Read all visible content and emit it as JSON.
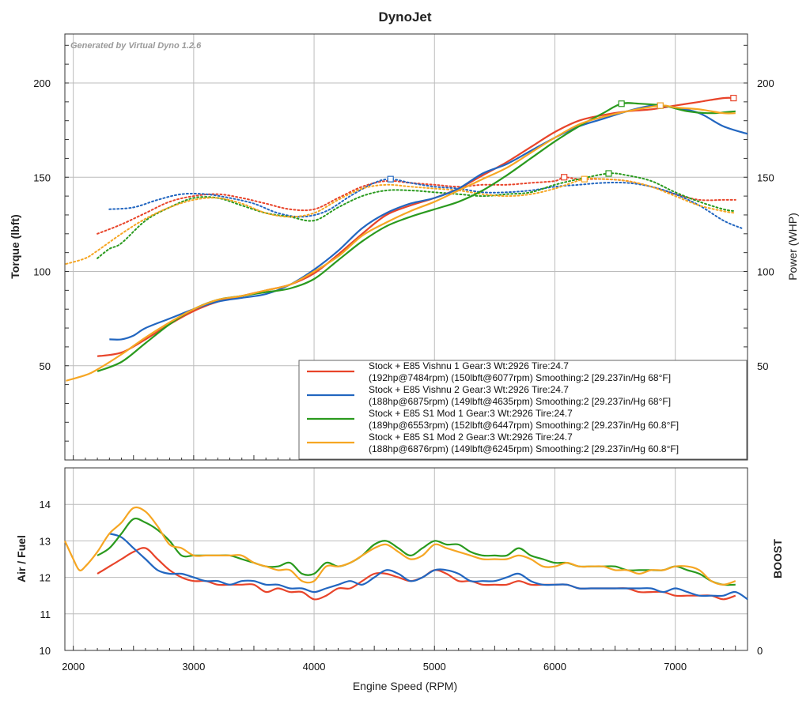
{
  "chart_data": [
    {
      "type": "line",
      "title": "DynoJet",
      "watermark": "Generated by Virtual Dyno 1.2.6",
      "xlabel": "Engine Speed (RPM)",
      "ylabel_left": "Torque (lbft)",
      "ylabel_right": "Power (WHP)",
      "xlim": [
        1930,
        7600
      ],
      "ylim": [
        0,
        226
      ],
      "x_ticks": [
        2000,
        3000,
        4000,
        5000,
        6000,
        7000
      ],
      "y_ticks": [
        50,
        100,
        150,
        200
      ],
      "grid": true,
      "legend_placement": "bottom-right",
      "colors": {
        "red": "#e8442a",
        "blue": "#2266c0",
        "green": "#2a9a1e",
        "orange": "#f6a623"
      },
      "legend": [
        {
          "line1": "Stock + E85 Vishnu 1 Gear:3 Wt:2926 Tire:24.7",
          "line2": "(192hp@7484rpm) (150lbft@6077rpm) Smoothing:2 [29.237in/Hg 68°F]",
          "color": "#e8442a"
        },
        {
          "line1": "Stock + E85 Vishnu 2 Gear:3 Wt:2926 Tire:24.7",
          "line2": "(188hp@6875rpm) (149lbft@4635rpm) Smoothing:2 [29.237in/Hg 68°F]",
          "color": "#2266c0"
        },
        {
          "line1": "Stock + E85 S1 Mod 1 Gear:3 Wt:2926 Tire:24.7",
          "line2": "(189hp@6553rpm) (152lbft@6447rpm) Smoothing:2 [29.237in/Hg 60.8°F]",
          "color": "#2a9a1e"
        },
        {
          "line1": "Stock + E85 S1 Mod 2 Gear:3 Wt:2926 Tire:24.7",
          "line2": "(188hp@6876rpm) (149lbft@6245rpm) Smoothing:2 [29.237in/Hg 60.8°F]",
          "color": "#f6a623"
        }
      ],
      "power_series": [
        {
          "color": "#e8442a",
          "peak": [
            7484,
            192
          ],
          "x": [
            2200,
            2400,
            2600,
            2800,
            3000,
            3200,
            3400,
            3600,
            3800,
            4000,
            4200,
            4400,
            4600,
            4800,
            5000,
            5200,
            5400,
            5600,
            5800,
            6000,
            6200,
            6400,
            6600,
            6800,
            7000,
            7200,
            7400,
            7500
          ],
          "y": [
            55,
            57,
            64,
            72,
            79,
            84,
            87,
            90,
            93,
            99,
            109,
            120,
            130,
            135,
            139,
            144,
            151,
            158,
            166,
            174,
            180,
            183,
            185,
            186,
            188,
            190,
            192,
            192
          ]
        },
        {
          "color": "#2266c0",
          "peak": [
            6875,
            188
          ],
          "x": [
            2300,
            2400,
            2500,
            2600,
            2800,
            3000,
            3200,
            3400,
            3600,
            3800,
            4000,
            4200,
            4400,
            4600,
            4800,
            5000,
            5200,
            5400,
            5600,
            5800,
            6000,
            6200,
            6400,
            6600,
            6800,
            6875,
            7000,
            7200,
            7400,
            7600
          ],
          "y": [
            64,
            64,
            66,
            70,
            75,
            80,
            84,
            86,
            88,
            93,
            101,
            111,
            123,
            131,
            136,
            139,
            144,
            152,
            157,
            164,
            171,
            177,
            181,
            185,
            188,
            188,
            187,
            184,
            177,
            173
          ]
        },
        {
          "color": "#2a9a1e",
          "peak": [
            6553,
            189
          ],
          "x": [
            2200,
            2400,
            2600,
            2800,
            3000,
            3200,
            3400,
            3600,
            3800,
            4000,
            4200,
            4400,
            4600,
            4800,
            5000,
            5200,
            5400,
            5600,
            5800,
            6000,
            6200,
            6400,
            6553,
            6700,
            6900,
            7100,
            7300,
            7500
          ],
          "y": [
            47,
            52,
            62,
            72,
            80,
            85,
            87,
            89,
            91,
            96,
            106,
            116,
            124,
            129,
            133,
            137,
            143,
            151,
            160,
            169,
            177,
            184,
            189,
            189,
            188,
            185,
            184,
            185
          ]
        },
        {
          "color": "#f6a623",
          "peak": [
            6876,
            188
          ],
          "x": [
            1940,
            2100,
            2200,
            2400,
            2600,
            2800,
            3000,
            3200,
            3400,
            3600,
            3800,
            4000,
            4200,
            4400,
            4600,
            4800,
            5000,
            5200,
            5400,
            5600,
            5800,
            6000,
            6200,
            6400,
            6600,
            6876,
            7000,
            7200,
            7400,
            7500
          ],
          "y": [
            42,
            45,
            48,
            56,
            65,
            73,
            80,
            85,
            87,
            90,
            93,
            100,
            108,
            119,
            126,
            132,
            137,
            143,
            149,
            155,
            163,
            171,
            178,
            182,
            185,
            188,
            187,
            186,
            184,
            184
          ]
        }
      ],
      "torque_series": [
        {
          "color": "#e8442a",
          "peak": [
            6077,
            150
          ],
          "x": [
            2200,
            2400,
            2600,
            2800,
            3000,
            3200,
            3400,
            3600,
            3800,
            4000,
            4200,
            4400,
            4600,
            4800,
            5000,
            5200,
            5400,
            5600,
            5800,
            6000,
            6077,
            6200,
            6400,
            6600,
            6800,
            7000,
            7200,
            7400,
            7500
          ],
          "y": [
            120,
            125,
            131,
            137,
            140,
            141,
            139,
            136,
            133,
            133,
            139,
            145,
            148,
            147,
            146,
            145,
            146,
            146,
            147,
            148,
            150,
            149,
            149,
            148,
            145,
            141,
            138,
            138,
            138
          ]
        },
        {
          "color": "#2266c0",
          "peak": [
            4635,
            149
          ],
          "x": [
            2300,
            2500,
            2700,
            2900,
            3100,
            3300,
            3500,
            3700,
            3900,
            4100,
            4300,
            4500,
            4635,
            4800,
            5000,
            5200,
            5400,
            5600,
            5800,
            6000,
            6200,
            6400,
            6600,
            6800,
            7000,
            7200,
            7400,
            7550
          ],
          "y": [
            133,
            134,
            138,
            141,
            141,
            139,
            136,
            131,
            129,
            132,
            140,
            147,
            149,
            147,
            145,
            144,
            142,
            142,
            143,
            145,
            146,
            147,
            147,
            145,
            141,
            135,
            127,
            123
          ]
        },
        {
          "color": "#2a9a1e",
          "peak": [
            6447,
            152
          ],
          "x": [
            2200,
            2300,
            2400,
            2600,
            2800,
            3000,
            3200,
            3400,
            3600,
            3800,
            4000,
            4200,
            4400,
            4600,
            4800,
            5000,
            5200,
            5400,
            5600,
            5800,
            6000,
            6200,
            6447,
            6600,
            6800,
            7000,
            7200,
            7400,
            7500
          ],
          "y": [
            107,
            112,
            115,
            127,
            134,
            139,
            139,
            135,
            131,
            129,
            127,
            134,
            140,
            143,
            143,
            142,
            141,
            140,
            141,
            142,
            146,
            149,
            152,
            151,
            148,
            142,
            137,
            133,
            132
          ]
        },
        {
          "color": "#f6a623",
          "peak": [
            6245,
            149
          ],
          "x": [
            1940,
            2100,
            2200,
            2400,
            2600,
            2800,
            3000,
            3200,
            3400,
            3600,
            3800,
            4000,
            4200,
            4400,
            4600,
            4800,
            5000,
            5200,
            5400,
            5600,
            5800,
            6000,
            6245,
            6400,
            6600,
            6800,
            7000,
            7200,
            7400,
            7500
          ],
          "y": [
            104,
            107,
            111,
            120,
            128,
            134,
            138,
            139,
            136,
            131,
            129,
            131,
            138,
            144,
            146,
            145,
            144,
            143,
            141,
            140,
            141,
            144,
            149,
            149,
            148,
            145,
            140,
            135,
            132,
            131
          ]
        }
      ]
    },
    {
      "type": "line",
      "ylabel_left": "Air / Fuel",
      "ylabel_right": "BOOST",
      "xlim": [
        1930,
        7600
      ],
      "ylim": [
        10,
        15
      ],
      "y_ticks": [
        10,
        11,
        12,
        13,
        14
      ],
      "right_tick": "0",
      "grid": true,
      "series": [
        {
          "color": "#e8442a",
          "x": [
            2200,
            2300,
            2400,
            2500,
            2600,
            2700,
            2800,
            2900,
            3000,
            3100,
            3200,
            3300,
            3400,
            3500,
            3600,
            3700,
            3800,
            3900,
            4000,
            4100,
            4200,
            4300,
            4400,
            4500,
            4600,
            4700,
            4800,
            4900,
            5000,
            5100,
            5200,
            5300,
            5400,
            5500,
            5600,
            5700,
            5800,
            5900,
            6000,
            6100,
            6200,
            6300,
            6400,
            6500,
            6600,
            6700,
            6800,
            6900,
            7000,
            7100,
            7200,
            7300,
            7400,
            7500
          ],
          "y": [
            12.1,
            12.3,
            12.5,
            12.7,
            12.8,
            12.5,
            12.2,
            12.0,
            11.9,
            11.9,
            11.8,
            11.8,
            11.8,
            11.8,
            11.6,
            11.7,
            11.6,
            11.6,
            11.4,
            11.5,
            11.7,
            11.7,
            11.9,
            12.1,
            12.1,
            12.0,
            11.9,
            12.0,
            12.2,
            12.1,
            11.9,
            11.9,
            11.8,
            11.8,
            11.8,
            11.9,
            11.8,
            11.8,
            11.8,
            11.8,
            11.7,
            11.7,
            11.7,
            11.7,
            11.7,
            11.6,
            11.6,
            11.6,
            11.5,
            11.5,
            11.5,
            11.5,
            11.4,
            11.5
          ]
        },
        {
          "color": "#2266c0",
          "x": [
            2300,
            2400,
            2500,
            2600,
            2700,
            2800,
            2900,
            3000,
            3100,
            3200,
            3300,
            3400,
            3500,
            3600,
            3700,
            3800,
            3900,
            4000,
            4100,
            4200,
            4300,
            4400,
            4500,
            4600,
            4700,
            4800,
            4900,
            5000,
            5100,
            5200,
            5300,
            5400,
            5500,
            5600,
            5700,
            5800,
            5900,
            6000,
            6100,
            6200,
            6300,
            6400,
            6500,
            6600,
            6700,
            6800,
            6900,
            7000,
            7100,
            7200,
            7300,
            7400,
            7500,
            7600
          ],
          "y": [
            13.2,
            13.1,
            12.8,
            12.5,
            12.2,
            12.1,
            12.1,
            12.0,
            11.9,
            11.9,
            11.8,
            11.9,
            11.9,
            11.8,
            11.8,
            11.7,
            11.7,
            11.6,
            11.7,
            11.8,
            11.9,
            11.8,
            12.0,
            12.2,
            12.1,
            11.9,
            12.0,
            12.2,
            12.2,
            12.1,
            11.9,
            11.9,
            11.9,
            12.0,
            12.1,
            11.9,
            11.8,
            11.8,
            11.8,
            11.7,
            11.7,
            11.7,
            11.7,
            11.7,
            11.7,
            11.7,
            11.6,
            11.7,
            11.6,
            11.5,
            11.5,
            11.5,
            11.6,
            11.4
          ]
        },
        {
          "color": "#2a9a1e",
          "x": [
            2200,
            2300,
            2400,
            2500,
            2600,
            2700,
            2800,
            2900,
            3000,
            3100,
            3200,
            3300,
            3400,
            3500,
            3600,
            3700,
            3800,
            3900,
            4000,
            4100,
            4200,
            4300,
            4400,
            4500,
            4600,
            4700,
            4800,
            4900,
            5000,
            5100,
            5200,
            5300,
            5400,
            5500,
            5600,
            5700,
            5800,
            5900,
            6000,
            6100,
            6200,
            6300,
            6400,
            6500,
            6600,
            6700,
            6800,
            6900,
            7000,
            7100,
            7200,
            7300,
            7400,
            7500
          ],
          "y": [
            12.6,
            12.8,
            13.2,
            13.6,
            13.5,
            13.3,
            13.0,
            12.6,
            12.6,
            12.6,
            12.6,
            12.6,
            12.5,
            12.4,
            12.3,
            12.3,
            12.4,
            12.1,
            12.1,
            12.4,
            12.3,
            12.4,
            12.6,
            12.9,
            13.0,
            12.8,
            12.6,
            12.8,
            13.0,
            12.9,
            12.9,
            12.7,
            12.6,
            12.6,
            12.6,
            12.8,
            12.6,
            12.5,
            12.4,
            12.4,
            12.3,
            12.3,
            12.3,
            12.3,
            12.2,
            12.2,
            12.2,
            12.2,
            12.3,
            12.2,
            12.1,
            11.9,
            11.8,
            11.8
          ]
        },
        {
          "color": "#f6a623",
          "x": [
            1930,
            2000,
            2050,
            2100,
            2200,
            2300,
            2400,
            2500,
            2600,
            2700,
            2800,
            2900,
            3000,
            3100,
            3200,
            3300,
            3400,
            3500,
            3600,
            3700,
            3800,
            3900,
            4000,
            4100,
            4200,
            4300,
            4400,
            4500,
            4600,
            4700,
            4800,
            4900,
            5000,
            5100,
            5200,
            5300,
            5400,
            5500,
            5600,
            5700,
            5800,
            5900,
            6000,
            6100,
            6200,
            6300,
            6400,
            6500,
            6600,
            6700,
            6800,
            6900,
            7000,
            7100,
            7200,
            7300,
            7400,
            7500
          ],
          "y": [
            13.0,
            12.5,
            12.2,
            12.3,
            12.7,
            13.2,
            13.5,
            13.9,
            13.8,
            13.4,
            12.9,
            12.8,
            12.6,
            12.6,
            12.6,
            12.6,
            12.6,
            12.4,
            12.3,
            12.2,
            12.2,
            11.9,
            11.9,
            12.3,
            12.3,
            12.4,
            12.6,
            12.8,
            12.9,
            12.7,
            12.5,
            12.6,
            12.9,
            12.8,
            12.7,
            12.6,
            12.5,
            12.5,
            12.5,
            12.6,
            12.5,
            12.3,
            12.3,
            12.4,
            12.3,
            12.3,
            12.3,
            12.2,
            12.2,
            12.1,
            12.2,
            12.2,
            12.3,
            12.3,
            12.2,
            11.9,
            11.8,
            11.9
          ]
        }
      ]
    }
  ]
}
